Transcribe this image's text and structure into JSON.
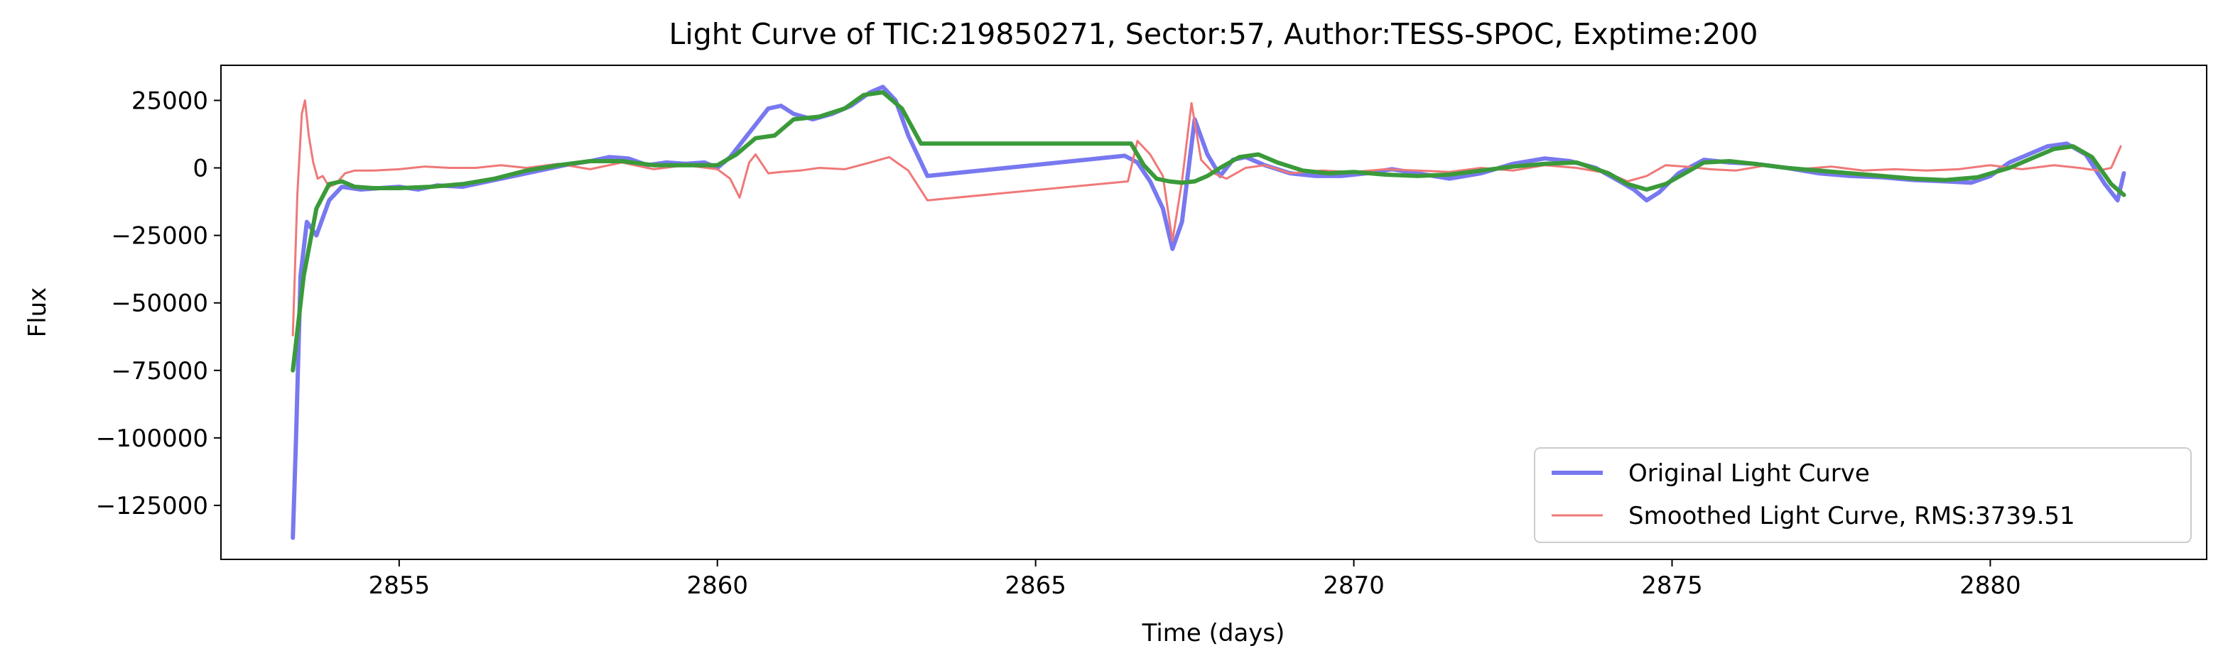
{
  "chart_data": {
    "type": "line",
    "title": "Light Curve of TIC:219850271, Sector:57, Author:TESS-SPOC, Exptime:200",
    "xlabel": "Time (days)",
    "ylabel": "Flux",
    "xlim": [
      2852.2,
      2883.4
    ],
    "ylim": [
      -145000,
      38000
    ],
    "xticks": [
      2855,
      2860,
      2865,
      2870,
      2875,
      2880
    ],
    "yticks": [
      25000,
      0,
      -25000,
      -50000,
      -75000,
      -100000,
      -125000
    ],
    "xtick_labels": [
      "2855",
      "2860",
      "2865",
      "2870",
      "2875",
      "2880"
    ],
    "ytick_labels": [
      "25000",
      "0",
      "−25000",
      "−50000",
      "−75000",
      "−100000",
      "−125000"
    ],
    "grid": false,
    "legend_position": "lower-right",
    "series": [
      {
        "name": "Original Light Curve",
        "color": "#7878f0",
        "x": [
          2853.33,
          2853.38,
          2853.45,
          2853.55,
          2853.7,
          2853.9,
          2854.1,
          2854.4,
          2854.7,
          2855.0,
          2855.3,
          2855.6,
          2856.0,
          2856.4,
          2856.8,
          2857.2,
          2857.6,
          2858.0,
          2858.3,
          2858.6,
          2858.9,
          2859.2,
          2859.5,
          2859.8,
          2860.0,
          2860.2,
          2860.4,
          2860.6,
          2860.8,
          2861.0,
          2861.2,
          2861.5,
          2861.8,
          2862.1,
          2862.4,
          2862.6,
          2862.8,
          2863.0,
          2863.3,
          2866.4,
          2866.6,
          2866.8,
          2867.0,
          2867.15,
          2867.3,
          2867.5,
          2867.7,
          2867.9,
          2868.1,
          2868.3,
          2868.6,
          2869.0,
          2869.4,
          2869.8,
          2870.2,
          2870.6,
          2871.0,
          2871.5,
          2872.0,
          2872.5,
          2873.0,
          2873.4,
          2873.8,
          2874.1,
          2874.4,
          2874.6,
          2874.8,
          2875.1,
          2875.5,
          2875.9,
          2876.3,
          2876.8,
          2877.3,
          2877.8,
          2878.3,
          2878.8,
          2879.3,
          2879.7,
          2880.0,
          2880.3,
          2880.6,
          2880.9,
          2881.2,
          2881.5,
          2881.8,
          2882.0,
          2882.1
        ],
        "y": [
          -137000,
          -100000,
          -40000,
          -20000,
          -25000,
          -12000,
          -7000,
          -8000,
          -7500,
          -7000,
          -8000,
          -6500,
          -7000,
          -5000,
          -3000,
          -1000,
          1000,
          2500,
          4000,
          3500,
          1000,
          2000,
          1500,
          2000,
          0,
          4000,
          10000,
          16000,
          22000,
          23000,
          20000,
          18000,
          20000,
          23000,
          28000,
          30000,
          25000,
          12000,
          -3000,
          4500,
          2000,
          -5000,
          -15000,
          -30000,
          -20000,
          18000,
          5000,
          -3000,
          3000,
          4000,
          1000,
          -2000,
          -3000,
          -3000,
          -2000,
          -500,
          -2000,
          -4000,
          -2000,
          1500,
          3500,
          2500,
          0,
          -4000,
          -8000,
          -12000,
          -9000,
          -2000,
          3000,
          2000,
          1500,
          0,
          -2000,
          -3000,
          -3500,
          -4500,
          -5000,
          -5500,
          -3000,
          2000,
          5000,
          8000,
          9000,
          5000,
          -6000,
          -12000,
          -2000
        ]
      },
      {
        "name": "Smoothed Light Curve, RMS:3739.51",
        "color": "#f07878",
        "x": [
          2853.33,
          2853.4,
          2853.47,
          2853.52,
          2853.58,
          2853.65,
          2853.72,
          2853.8,
          2853.9,
          2854.0,
          2854.15,
          2854.3,
          2854.6,
          2855.0,
          2855.4,
          2855.8,
          2856.2,
          2856.6,
          2857.0,
          2857.5,
          2858.0,
          2858.5,
          2859.0,
          2859.5,
          2860.0,
          2860.2,
          2860.35,
          2860.5,
          2860.6,
          2860.8,
          2861.0,
          2861.3,
          2861.6,
          2862.0,
          2862.4,
          2862.7,
          2863.0,
          2863.3,
          2866.45,
          2866.6,
          2866.8,
          2867.0,
          2867.15,
          2867.3,
          2867.45,
          2867.6,
          2867.8,
          2868.0,
          2868.3,
          2868.6,
          2869.0,
          2869.5,
          2870.0,
          2870.5,
          2871.0,
          2871.5,
          2872.0,
          2872.5,
          2873.0,
          2873.5,
          2874.0,
          2874.3,
          2874.6,
          2874.9,
          2875.2,
          2875.6,
          2876.0,
          2876.5,
          2877.0,
          2877.5,
          2878.0,
          2878.5,
          2879.0,
          2879.5,
          2880.0,
          2880.5,
          2881.0,
          2881.4,
          2881.7,
          2881.9,
          2882.05
        ],
        "y": [
          -62000,
          -10000,
          20000,
          25000,
          12000,
          2000,
          -4000,
          -3000,
          -7000,
          -6000,
          -2000,
          -1000,
          -1000,
          -500,
          500,
          0,
          0,
          1000,
          0,
          1500,
          -500,
          2000,
          -500,
          1000,
          -500,
          -4000,
          -11000,
          2000,
          5000,
          -2000,
          -1500,
          -1000,
          0,
          -500,
          2000,
          4000,
          -1000,
          -12000,
          -5000,
          10000,
          5000,
          -3000,
          -27000,
          -5000,
          24000,
          3000,
          -2000,
          -4000,
          0,
          1000,
          -2000,
          -1000,
          -1500,
          -500,
          -1000,
          -1500,
          0,
          -1000,
          1000,
          0,
          -2000,
          -5000,
          -3000,
          1000,
          500,
          -500,
          -1000,
          1000,
          -500,
          500,
          -1000,
          -500,
          -1000,
          -500,
          1000,
          -500,
          1000,
          0,
          -1000,
          0,
          8000
        ]
      },
      {
        "name": "",
        "color": "#3a9a3a",
        "x": [
          2853.33,
          2853.5,
          2853.7,
          2853.9,
          2854.1,
          2854.3,
          2854.6,
          2855.0,
          2855.5,
          2856.0,
          2856.5,
          2857.0,
          2857.5,
          2858.0,
          2858.5,
          2859.0,
          2859.5,
          2860.0,
          2860.3,
          2860.6,
          2860.9,
          2861.2,
          2861.6,
          2862.0,
          2862.3,
          2862.6,
          2862.9,
          2863.2,
          2866.5,
          2866.7,
          2866.9,
          2867.1,
          2867.3,
          2867.5,
          2867.7,
          2867.9,
          2868.2,
          2868.5,
          2868.8,
          2869.2,
          2869.6,
          2870.0,
          2870.5,
          2871.0,
          2871.5,
          2872.0,
          2872.5,
          2873.0,
          2873.5,
          2874.0,
          2874.3,
          2874.6,
          2874.9,
          2875.2,
          2875.5,
          2875.9,
          2876.3,
          2876.8,
          2877.3,
          2877.8,
          2878.3,
          2878.8,
          2879.3,
          2879.8,
          2880.3,
          2880.7,
          2881.0,
          2881.3,
          2881.6,
          2881.9,
          2882.1
        ],
        "y": [
          -75000,
          -40000,
          -15000,
          -6000,
          -5000,
          -7000,
          -7500,
          -7500,
          -7000,
          -6000,
          -4000,
          -1000,
          1000,
          2500,
          2500,
          1000,
          1000,
          1000,
          5000,
          11000,
          12000,
          18000,
          19000,
          22000,
          27000,
          28000,
          22000,
          9000,
          9000,
          1000,
          -4000,
          -5000,
          -5500,
          -5000,
          -3000,
          0,
          4000,
          5000,
          2000,
          -1000,
          -2000,
          -1500,
          -2500,
          -3000,
          -2500,
          -1000,
          500,
          1500,
          2000,
          -2000,
          -6000,
          -8000,
          -6000,
          -2000,
          2000,
          2500,
          1500,
          0,
          -1000,
          -2000,
          -3000,
          -4000,
          -4500,
          -3500,
          0,
          4000,
          7000,
          8000,
          4000,
          -6000,
          -10000
        ]
      }
    ]
  }
}
